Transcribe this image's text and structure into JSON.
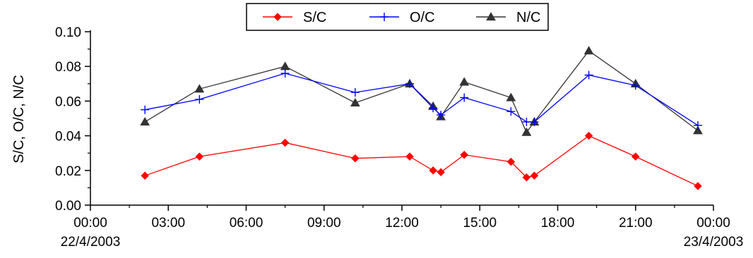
{
  "chart_data": {
    "type": "line",
    "ylabel": "S/C, O/C, N/C",
    "xlabel": "",
    "ylim": [
      0,
      0.1
    ],
    "xlim_hours": [
      0,
      24
    ],
    "yticks": [
      "0.00",
      "0.02",
      "0.04",
      "0.06",
      "0.08",
      "0.10"
    ],
    "xticks": [
      {
        "line1": "00:00",
        "line2": "22/4/2003"
      },
      {
        "line1": "03:00",
        "line2": ""
      },
      {
        "line1": "06:00",
        "line2": ""
      },
      {
        "line1": "09:00",
        "line2": ""
      },
      {
        "line1": "12:00",
        "line2": ""
      },
      {
        "line1": "15:00",
        "line2": ""
      },
      {
        "line1": "18:00",
        "line2": ""
      },
      {
        "line1": "21:00",
        "line2": ""
      },
      {
        "line1": "00:00",
        "line2": "23/4/2003"
      }
    ],
    "legend_position": "top-center",
    "x_hours": [
      2.1,
      4.2,
      7.5,
      10.2,
      12.3,
      13.2,
      13.5,
      14.4,
      16.2,
      16.8,
      17.1,
      19.2,
      21.0,
      23.4
    ],
    "series": [
      {
        "name": "S/C",
        "color": "#ff0000",
        "marker": "diamond",
        "values": [
          0.017,
          0.028,
          0.036,
          0.027,
          0.028,
          0.02,
          0.019,
          0.029,
          0.025,
          0.016,
          0.017,
          0.04,
          0.028,
          0.011
        ]
      },
      {
        "name": "O/C",
        "color": "#0000ff",
        "marker": "plus",
        "values": [
          0.055,
          0.061,
          0.076,
          0.065,
          0.07,
          0.056,
          0.052,
          0.062,
          0.054,
          0.048,
          0.048,
          0.075,
          0.069,
          0.046
        ]
      },
      {
        "name": "N/C",
        "color": "#333333",
        "marker": "triangle",
        "values": [
          0.048,
          0.067,
          0.08,
          0.059,
          0.07,
          0.057,
          0.051,
          0.071,
          0.062,
          0.042,
          0.048,
          0.089,
          0.07,
          0.043
        ]
      }
    ]
  }
}
